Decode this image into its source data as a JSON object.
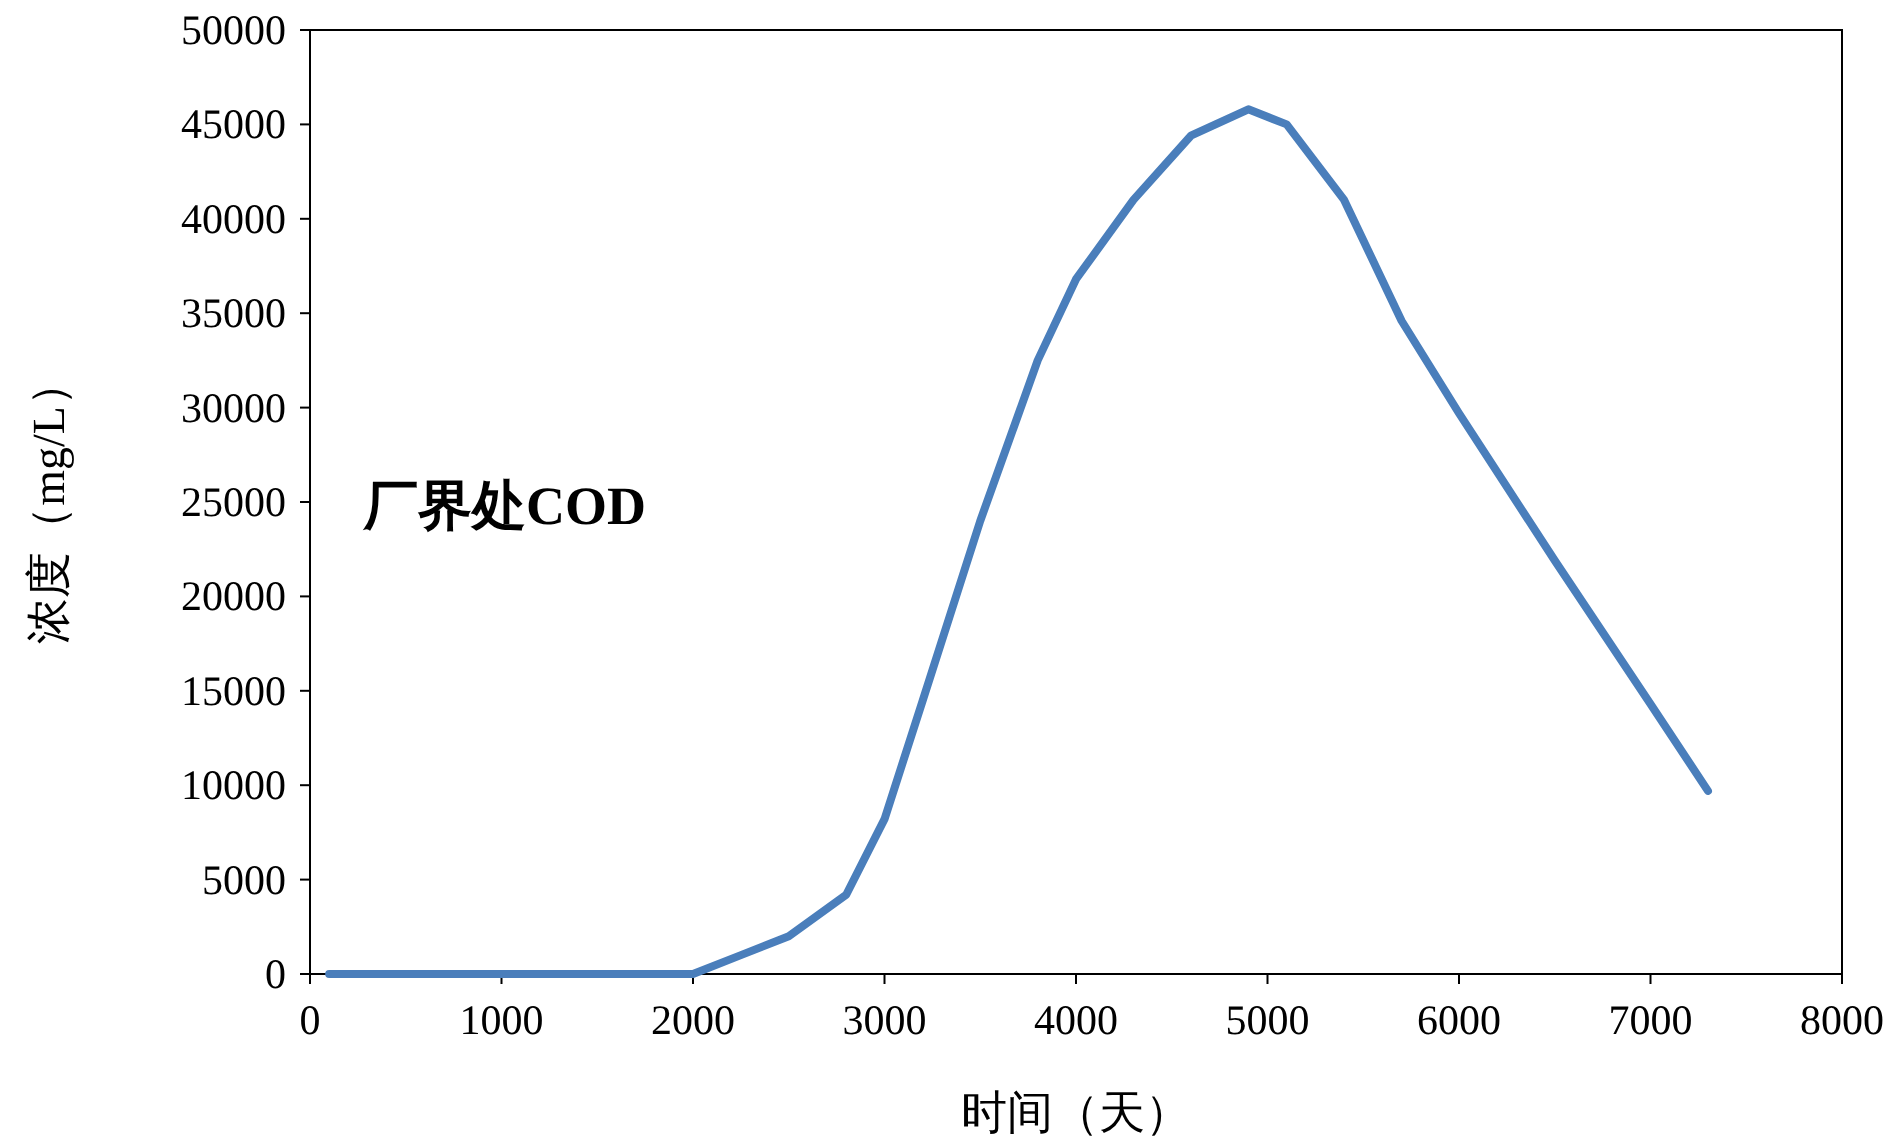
{
  "chart_data": {
    "type": "line",
    "xlabel": "时间（天）",
    "ylabel": "浓度（mg/L）",
    "annotations": [
      "厂界处COD"
    ],
    "xlim": [
      0,
      8000
    ],
    "xticks": [
      0,
      1000,
      2000,
      3000,
      4000,
      5000,
      6000,
      7000,
      8000
    ],
    "ylim": [
      0,
      50000
    ],
    "yticks": [
      0,
      5000,
      10000,
      15000,
      20000,
      25000,
      30000,
      35000,
      40000,
      45000,
      50000
    ],
    "grid": false,
    "marker": "none",
    "line_style": "solid",
    "series": [
      {
        "color": "#4a7ebb",
        "x": [
          100,
          1000,
          1950,
          2000,
          2250,
          2500,
          2800,
          3000,
          3200,
          3500,
          3800,
          4000,
          4300,
          4600,
          4900,
          5100,
          5400,
          5700,
          6000,
          6500,
          7000,
          7300
        ],
        "values": [
          0,
          0,
          0,
          0,
          1000,
          2000,
          4200,
          8200,
          14500,
          24000,
          32500,
          36800,
          41000,
          44400,
          45800,
          45000,
          41000,
          34600,
          29700,
          21900,
          14300,
          9700
        ]
      }
    ]
  }
}
